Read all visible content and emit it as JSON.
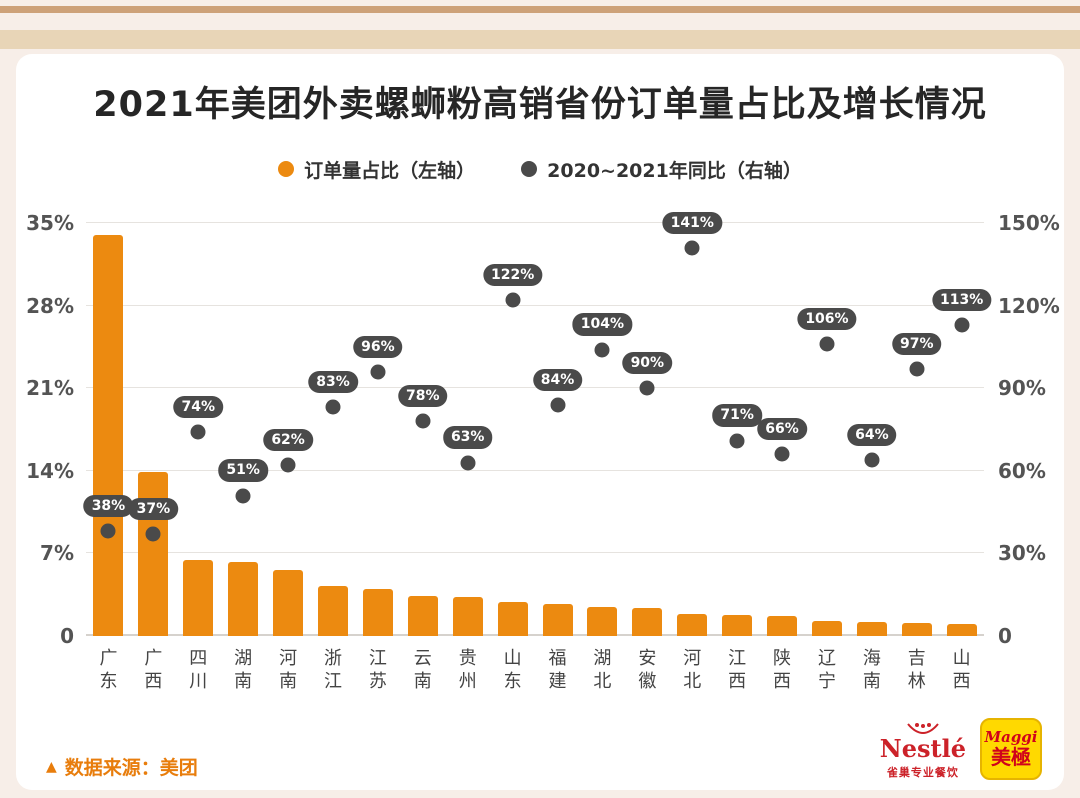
{
  "page": {
    "title": "2021年美团外卖螺蛳粉高销省份订单量占比及增长情况"
  },
  "legend": [
    {
      "name": "order-share",
      "label": "订单量占比（左轴）",
      "color": "#EC8A10"
    },
    {
      "name": "yoy-growth",
      "label": "2020~2021年同比（右轴）",
      "color": "#4A4A4A"
    }
  ],
  "chart_data": {
    "type": "bar",
    "title": "2021年美团外卖螺蛳粉高销省份订单量占比及增长情况",
    "categories": [
      "广东",
      "广西",
      "四川",
      "湖南",
      "河南",
      "浙江",
      "江苏",
      "云南",
      "贵州",
      "山东",
      "福建",
      "湖北",
      "安徽",
      "河北",
      "江西",
      "陕西",
      "辽宁",
      "海南",
      "吉林",
      "山西"
    ],
    "series": [
      {
        "name": "订单量占比（左轴）",
        "type": "bar",
        "axis": "left",
        "unit": "%",
        "values": [
          34,
          13.9,
          6.4,
          6.3,
          5.6,
          4.2,
          4.0,
          3.4,
          3.3,
          2.9,
          2.7,
          2.5,
          2.4,
          1.9,
          1.8,
          1.7,
          1.3,
          1.2,
          1.1,
          1.0
        ]
      },
      {
        "name": "2020~2021年同比（右轴）",
        "type": "scatter",
        "axis": "right",
        "unit": "%",
        "values": [
          38,
          37,
          74,
          51,
          62,
          83,
          96,
          78,
          63,
          122,
          84,
          104,
          90,
          141,
          71,
          66,
          106,
          64,
          97,
          113
        ]
      }
    ],
    "left_axis": {
      "ticks": [
        "0",
        "7%",
        "14%",
        "21%",
        "28%",
        "35%"
      ],
      "min": 0,
      "max": 35
    },
    "right_axis": {
      "ticks": [
        "0",
        "30%",
        "60%",
        "90%",
        "120%",
        "150%"
      ],
      "min": 0,
      "max": 150
    },
    "grid": true,
    "legend_position": "top"
  },
  "footer": {
    "triangle": "▲",
    "source_text": "数据来源：美团"
  },
  "logos": {
    "nestle_name": "Nestlé",
    "nestle_sub": "雀巢专业餐饮",
    "maggi_script": "Maggi",
    "maggi_name": "美極"
  },
  "colors": {
    "bar_orange": "#EC8A10",
    "dot_gray": "#4A4A4A",
    "background": "#F7EEE8",
    "stripe_dark": "#CDA178",
    "stripe_light": "#E8D5B7"
  }
}
